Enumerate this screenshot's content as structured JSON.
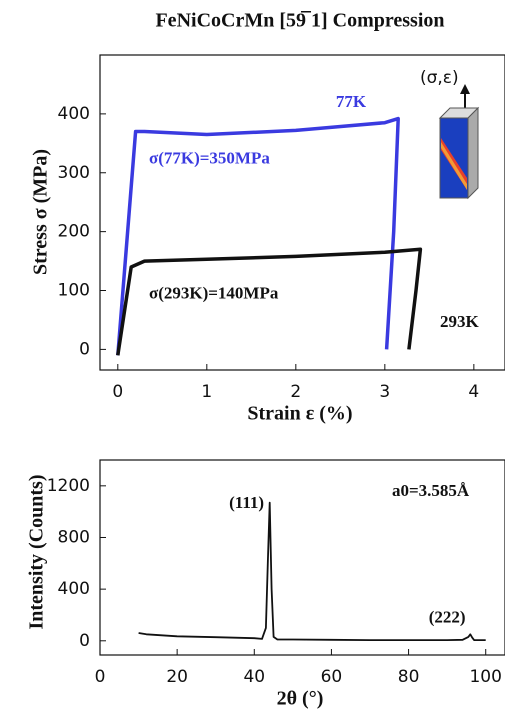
{
  "chart_data": [
    {
      "type": "line",
      "title": "FeNiCoCrMn [59̅ 1] Compression",
      "xlabel": "Strain ε (%)",
      "ylabel": "Stress σ (MPa)",
      "xlim": [
        -0.2,
        4.35
      ],
      "ylim": [
        -35,
        500
      ],
      "xticks": [
        0,
        1,
        2,
        3,
        4
      ],
      "yticks": [
        0,
        100,
        200,
        300,
        400
      ],
      "series": [
        {
          "name": "77K",
          "color": "#3a3ae0",
          "x": [
            0,
            0.2,
            0.3,
            1,
            2,
            3,
            3.15,
            3.1,
            3.02
          ],
          "values": [
            -10,
            370,
            370,
            365,
            372,
            385,
            392,
            200,
            0
          ]
        },
        {
          "name": "293K",
          "color": "#111111",
          "x": [
            0,
            0.15,
            0.3,
            1,
            2,
            3,
            3.4,
            3.35,
            3.27
          ],
          "values": [
            -10,
            140,
            150,
            153,
            158,
            165,
            170,
            100,
            0
          ]
        }
      ],
      "annotations": [
        "σ(77K)=350MPa",
        "σ(293K)=140MPa",
        "(σ,ε)"
      ]
    },
    {
      "type": "line",
      "xlabel": "2θ (°)",
      "ylabel": "Intensity (Counts)",
      "xlim": [
        0,
        105
      ],
      "ylim": [
        -110,
        1400
      ],
      "xticks": [
        0,
        20,
        40,
        60,
        80,
        100
      ],
      "yticks": [
        0,
        400,
        800,
        1200
      ],
      "series": [
        {
          "color": "#111111",
          "x": [
            10,
            12,
            20,
            30,
            40,
            42,
            43,
            43.5,
            44,
            44.5,
            45,
            46,
            50,
            60,
            70,
            80,
            90,
            94,
            95.5,
            96,
            96.5,
            97,
            100
          ],
          "values": [
            60,
            50,
            35,
            28,
            20,
            15,
            100,
            600,
            1070,
            400,
            30,
            10,
            10,
            8,
            5,
            5,
            5,
            8,
            30,
            50,
            25,
            5,
            5
          ]
        }
      ],
      "annotations": [
        "(111)",
        "(222)",
        "a0=3.585Å"
      ]
    }
  ]
}
